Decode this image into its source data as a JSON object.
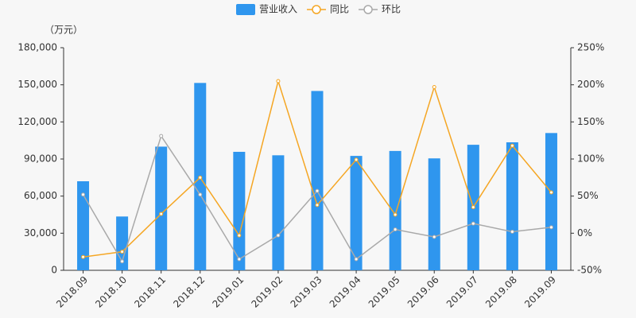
{
  "chart_data": {
    "type": "bar-line",
    "y_unit": "（万元）",
    "categories": [
      "2018.09",
      "2018.10",
      "2018.11",
      "2018.12",
      "2019.01",
      "2019.02",
      "2019.03",
      "2019.04",
      "2019.05",
      "2019.06",
      "2019.07",
      "2019.08",
      "2019.09"
    ],
    "series": [
      {
        "name": "营业收入",
        "type": "bar",
        "color": "#2f96ee",
        "values": [
          72000,
          43500,
          100000,
          151500,
          95800,
          93000,
          145000,
          92500,
          96500,
          90500,
          101500,
          103500,
          111000
        ]
      },
      {
        "name": "同比",
        "type": "line",
        "axis": "y2",
        "color": "#f5a623",
        "values": [
          -32,
          -25,
          26,
          75,
          -3,
          205,
          38,
          99,
          25,
          197,
          35,
          118,
          55
        ]
      },
      {
        "name": "环比",
        "type": "line",
        "axis": "y2",
        "color": "#a9a9a9",
        "values": [
          52,
          -38,
          131,
          52,
          -35,
          -3,
          57,
          -35,
          5,
          -5,
          13,
          2,
          8
        ]
      }
    ],
    "ylim": [
      0,
      180000
    ],
    "yticks": [
      0,
      {
        "value": 30000,
        "label": "30,000"
      },
      {
        "value": 60000,
        "label": "60,000"
      },
      {
        "value": 90000,
        "label": "90,000"
      },
      {
        "value": 120000,
        "label": "120,000"
      },
      {
        "value": 150000,
        "label": "150,000"
      },
      {
        "value": 180000,
        "label": "180,000"
      }
    ],
    "y2lim": [
      -50,
      250
    ],
    "y2ticks": [
      {
        "value": -50,
        "label": "-50%"
      },
      {
        "value": 0,
        "label": "0%"
      },
      {
        "value": 50,
        "label": "50%"
      },
      {
        "value": 100,
        "label": "100%"
      },
      {
        "value": 150,
        "label": "150%"
      },
      {
        "value": 200,
        "label": "200%"
      },
      {
        "value": 250,
        "label": "250%"
      }
    ]
  }
}
